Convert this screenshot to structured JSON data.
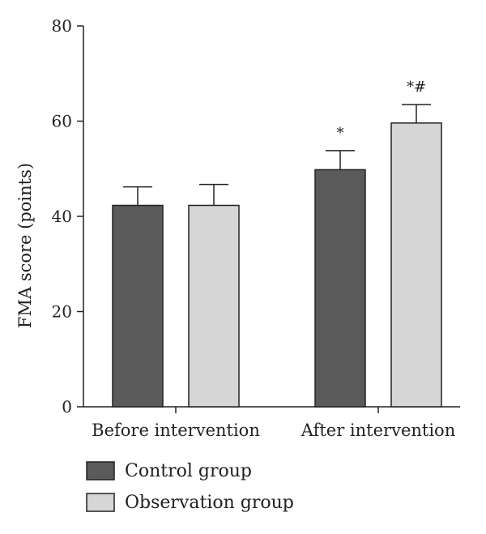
{
  "chart_data": {
    "type": "bar",
    "title": "",
    "xlabel": "",
    "ylabel": "FMA score (points)",
    "ylim": [
      0,
      80
    ],
    "yticks": [
      0,
      20,
      40,
      60,
      80
    ],
    "grid": false,
    "legend_position": "bottom-left",
    "categories": [
      "Before intervention",
      "After intervention"
    ],
    "series": [
      {
        "name": "Control group",
        "color": "#5a5a5a",
        "values": [
          42.3,
          49.8
        ],
        "errors": [
          3.9,
          4.0
        ],
        "annotations": [
          "",
          "*"
        ]
      },
      {
        "name": "Observation group",
        "color": "#d6d6d6",
        "values": [
          42.3,
          59.6
        ],
        "errors": [
          4.4,
          3.9
        ],
        "annotations": [
          "",
          "*#"
        ]
      }
    ]
  }
}
